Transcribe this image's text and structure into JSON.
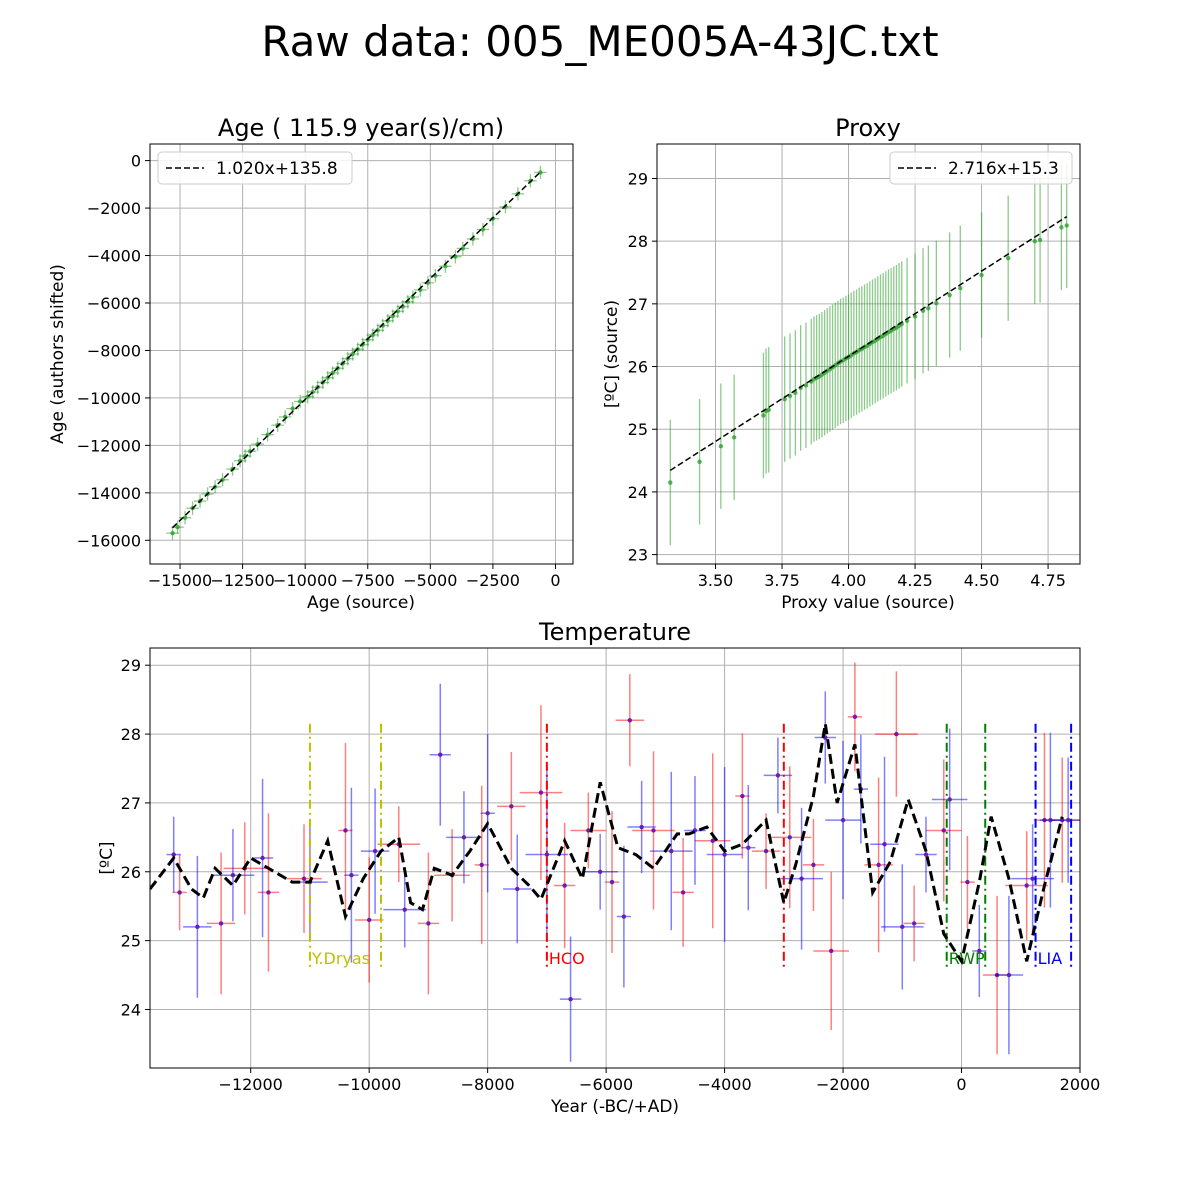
{
  "figure": {
    "title": "Raw data: 005_ME005A-43JC.txt"
  },
  "chart_data": [
    {
      "type": "scatter",
      "title": "Age ( 115.9 year(s)/cm)",
      "xlabel": "Age (source)",
      "ylabel": "Age (authors shifted)",
      "xlim": [
        -16200,
        700
      ],
      "ylim": [
        -17000,
        700
      ],
      "xticks": [
        -15000,
        -12500,
        -10000,
        -7500,
        -5000,
        -2500,
        0
      ],
      "xtick_labels": [
        "−15000",
        "−12500",
        "−10000",
        "−7500",
        "−5000",
        "−2500",
        "0"
      ],
      "yticks": [
        0,
        -2000,
        -4000,
        -6000,
        -8000,
        -10000,
        -12000,
        -14000,
        -16000
      ],
      "ytick_labels": [
        "0",
        "−2000",
        "−4000",
        "−6000",
        "−8000",
        "−10000",
        "−12000",
        "−14000",
        "−16000"
      ],
      "grid": true,
      "legend": {
        "position": "upper-left",
        "entries": [
          {
            "label": "1.020x+135.8",
            "style": "dashed",
            "color": "#000000"
          }
        ]
      },
      "fit": {
        "slope": 1.02,
        "intercept": 135.8
      },
      "x_error": 250,
      "y_error": 280,
      "series": [
        {
          "color": "#2ca02c",
          "x": [
            -15300,
            -15100,
            -14800,
            -14500,
            -14200,
            -13900,
            -13600,
            -13300,
            -12900,
            -12600,
            -12400,
            -12200,
            -11900,
            -11500,
            -11100,
            -10800,
            -10500,
            -10200,
            -9900,
            -9700,
            -9500,
            -9300,
            -9100,
            -8900,
            -8700,
            -8500,
            -8300,
            -8100,
            -7900,
            -7700,
            -7500,
            -7300,
            -7100,
            -6900,
            -6700,
            -6500,
            -6300,
            -6100,
            -5900,
            -5700,
            -5400,
            -5100,
            -4800,
            -4400,
            -4000,
            -3700,
            -3300,
            -2900,
            -2500,
            -2000,
            -1500,
            -1000,
            -600
          ],
          "y": [
            -15700,
            -15450,
            -15050,
            -14650,
            -14350,
            -14050,
            -13750,
            -13450,
            -13000,
            -12650,
            -12450,
            -12250,
            -11950,
            -11550,
            -11150,
            -10800,
            -10450,
            -10150,
            -9950,
            -9750,
            -9550,
            -9350,
            -9150,
            -8950,
            -8750,
            -8550,
            -8350,
            -8150,
            -7950,
            -7750,
            -7550,
            -7350,
            -7150,
            -6950,
            -6750,
            -6550,
            -6350,
            -6150,
            -5950,
            -5750,
            -5450,
            -5150,
            -4850,
            -4450,
            -4050,
            -3700,
            -3300,
            -2900,
            -2450,
            -1950,
            -1400,
            -850,
            -500
          ]
        }
      ]
    },
    {
      "type": "scatter",
      "title": "Proxy",
      "xlabel": "Proxy value (source)",
      "ylabel": "[ºC] (source)",
      "xlim": [
        3.28,
        4.87
      ],
      "ylim": [
        22.85,
        29.55
      ],
      "xticks": [
        3.5,
        3.75,
        4.0,
        4.25,
        4.5,
        4.75
      ],
      "xtick_labels": [
        "3.50",
        "3.75",
        "4.00",
        "4.25",
        "4.50",
        "4.75"
      ],
      "yticks": [
        23,
        24,
        25,
        26,
        27,
        28,
        29
      ],
      "ytick_labels": [
        "23",
        "24",
        "25",
        "26",
        "27",
        "28",
        "29"
      ],
      "grid": true,
      "legend": {
        "position": "upper-right",
        "entries": [
          {
            "label": "2.716x+15.3",
            "style": "dashed",
            "color": "#000000"
          }
        ]
      },
      "fit": {
        "slope": 2.716,
        "intercept": 15.3
      },
      "y_error": 1.0,
      "series": [
        {
          "color": "#2ca02c",
          "x": [
            3.33,
            3.44,
            3.52,
            3.57,
            3.68,
            3.69,
            3.7,
            3.76,
            3.78,
            3.8,
            3.82,
            3.84,
            3.86,
            3.87,
            3.88,
            3.89,
            3.9,
            3.91,
            3.92,
            3.93,
            3.94,
            3.95,
            3.96,
            3.97,
            3.98,
            3.99,
            4.0,
            4.01,
            4.02,
            4.03,
            4.04,
            4.05,
            4.06,
            4.07,
            4.08,
            4.09,
            4.1,
            4.11,
            4.12,
            4.13,
            4.14,
            4.15,
            4.16,
            4.17,
            4.18,
            4.19,
            4.2,
            4.22,
            4.25,
            4.28,
            4.3,
            4.33,
            4.38,
            4.42,
            4.5,
            4.6,
            4.7,
            4.72,
            4.8,
            4.82
          ],
          "y": [
            24.15,
            24.48,
            24.73,
            24.87,
            25.22,
            25.29,
            25.31,
            25.48,
            25.53,
            25.58,
            25.66,
            25.7,
            25.76,
            25.8,
            25.82,
            25.84,
            25.87,
            25.9,
            25.93,
            25.96,
            25.99,
            26.02,
            26.05,
            26.08,
            26.1,
            26.13,
            26.15,
            26.18,
            26.21,
            26.23,
            26.26,
            26.28,
            26.31,
            26.33,
            26.36,
            26.39,
            26.41,
            26.44,
            26.47,
            26.49,
            26.52,
            26.55,
            26.57,
            26.6,
            26.62,
            26.65,
            26.68,
            26.73,
            26.8,
            26.89,
            26.93,
            27.01,
            27.14,
            27.25,
            27.46,
            27.73,
            28.0,
            28.02,
            28.22,
            28.25
          ]
        }
      ]
    },
    {
      "type": "line",
      "title": "Temperature",
      "xlabel": "Year (-BC/+AD)",
      "ylabel": "[ºC]",
      "xlim": [
        -13700,
        2000
      ],
      "ylim": [
        23.15,
        29.25
      ],
      "xticks": [
        -12000,
        -10000,
        -8000,
        -6000,
        -4000,
        -2000,
        0,
        2000
      ],
      "xtick_labels": [
        "−12000",
        "−10000",
        "−8000",
        "−6000",
        "−4000",
        "−2000",
        "0",
        "2000"
      ],
      "yticks": [
        24,
        25,
        26,
        27,
        28,
        29
      ],
      "ytick_labels": [
        "24",
        "25",
        "26",
        "27",
        "28",
        "29"
      ],
      "grid": true,
      "series": [
        {
          "color": "#000000",
          "style": "dashed",
          "x": [
            -13700,
            -13300,
            -13000,
            -12800,
            -12600,
            -12300,
            -12000,
            -11700,
            -11300,
            -11000,
            -10700,
            -10400,
            -10100,
            -9800,
            -9500,
            -9300,
            -9100,
            -8900,
            -8600,
            -8300,
            -8000,
            -7600,
            -7300,
            -7100,
            -6700,
            -6400,
            -6100,
            -5800,
            -5500,
            -5200,
            -4800,
            -4600,
            -4300,
            -4000,
            -3700,
            -3300,
            -3000,
            -2800,
            -2500,
            -2300,
            -2100,
            -1800,
            -1500,
            -1200,
            -900,
            -600,
            -300,
            0,
            300,
            500,
            800,
            1100,
            1400,
            1700
          ],
          "y": [
            25.75,
            26.2,
            25.75,
            25.62,
            26.05,
            25.8,
            26.2,
            26.05,
            25.85,
            25.85,
            26.45,
            25.35,
            25.9,
            26.3,
            26.5,
            25.55,
            25.45,
            26.05,
            25.95,
            26.3,
            26.7,
            26.05,
            25.8,
            25.6,
            26.45,
            25.9,
            27.3,
            26.35,
            26.25,
            26.05,
            26.55,
            26.55,
            26.65,
            26.3,
            26.4,
            26.75,
            25.55,
            26.1,
            27.1,
            28.15,
            27.0,
            27.85,
            25.7,
            26.15,
            27.05,
            26.3,
            25.1,
            24.7,
            25.85,
            26.8,
            25.9,
            24.7,
            25.8,
            26.8
          ]
        },
        {
          "color": "#ff0000",
          "label": "error-bars",
          "x": [
            -13200,
            -12500,
            -12100,
            -11700,
            -11100,
            -10400,
            -10000,
            -9500,
            -9000,
            -8600,
            -8100,
            -7600,
            -7100,
            -6700,
            -6300,
            -5900,
            -5600,
            -5200,
            -4700,
            -4200,
            -3700,
            -3300,
            -2900,
            -2500,
            -2200,
            -1800,
            -1400,
            -1100,
            -800,
            -300,
            100,
            600,
            1100,
            1400,
            1700
          ],
          "y": [
            25.7,
            25.25,
            26.05,
            25.7,
            25.9,
            26.6,
            25.3,
            26.4,
            25.25,
            25.95,
            26.1,
            26.95,
            27.15,
            25.8,
            26.6,
            25.85,
            28.2,
            26.6,
            25.7,
            26.45,
            27.1,
            26.3,
            26.5,
            26.1,
            24.85,
            28.25,
            26.1,
            28.0,
            25.25,
            26.6,
            25.85,
            24.5,
            25.8,
            26.75,
            26.75
          ]
        },
        {
          "color": "#0000ff",
          "label": "error-bars",
          "x": [
            -13300,
            -12900,
            -12300,
            -11800,
            -11000,
            -10300,
            -9900,
            -9400,
            -8800,
            -8400,
            -8000,
            -7500,
            -7000,
            -6600,
            -6100,
            -5700,
            -5400,
            -4900,
            -4500,
            -4000,
            -3600,
            -3100,
            -2700,
            -2300,
            -2000,
            -1700,
            -1300,
            -1000,
            -600,
            -200,
            300,
            800,
            1200,
            1500,
            1800
          ],
          "y": [
            26.25,
            25.2,
            25.95,
            26.2,
            25.85,
            25.95,
            26.3,
            25.45,
            27.7,
            26.5,
            26.85,
            25.75,
            26.25,
            24.15,
            26.0,
            25.35,
            26.65,
            26.3,
            26.6,
            26.25,
            26.35,
            27.4,
            25.9,
            27.95,
            26.75,
            27.2,
            26.4,
            25.2,
            26.25,
            27.05,
            24.85,
            24.5,
            25.9,
            26.75,
            26.75
          ]
        }
      ],
      "events": [
        {
          "label": "Y.Dryas",
          "color": "#bfbf00",
          "x": [
            -11000,
            -9800
          ]
        },
        {
          "label": "HCO",
          "color": "#ff0000",
          "x": [
            -7000,
            -3000
          ]
        },
        {
          "label": "RWP",
          "color": "#008000",
          "x": [
            -250,
            400
          ]
        },
        {
          "label": "LIA",
          "color": "#0000ff",
          "x": [
            1250,
            1850
          ]
        }
      ]
    }
  ]
}
